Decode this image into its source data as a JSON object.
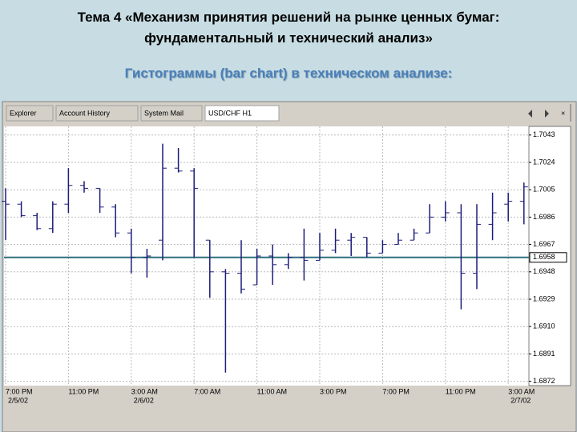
{
  "header": {
    "title_line1": "Тема 4 «Механизм принятия решений на рынке ценных бумаг:",
    "title_line2": "фундаментальный и технический анализ»",
    "subtitle": "Гистограммы (bar chart) в техническом анализе:"
  },
  "tabs": [
    "Explorer",
    "Account History",
    "System Mail",
    "USD/CHF H1"
  ],
  "chart_data": {
    "type": "ohlc",
    "color": "#1c1c7a",
    "grid": true,
    "categories": [
      "7:00 PM",
      null,
      null,
      null,
      "11:00 PM",
      null,
      null,
      null,
      "3:00 AM",
      null,
      null,
      null,
      "7:00 AM",
      null,
      null,
      null,
      "11:00 AM",
      null,
      null,
      null,
      "3:00 PM",
      null,
      null,
      null,
      "7:00 PM",
      null,
      null,
      null,
      "11:00 PM",
      null,
      null,
      null,
      "3:00 AM",
      null
    ],
    "dates": [
      "2/5/02",
      null,
      null,
      null,
      null,
      null,
      null,
      null,
      "2/6/02",
      null,
      null,
      null,
      null,
      null,
      null,
      null,
      null,
      null,
      null,
      null,
      null,
      null,
      null,
      null,
      null,
      null,
      null,
      null,
      null,
      null,
      null,
      null,
      "2/7/02",
      null
    ],
    "high": [
      1.7006,
      1.6997,
      1.6989,
      1.6997,
      1.702,
      1.7011,
      1.7006,
      1.6995,
      1.6978,
      1.6964,
      1.7037,
      1.7034,
      1.702,
      1.697,
      1.695,
      1.697,
      1.6964,
      1.6967,
      1.6961,
      1.6978,
      1.6975,
      1.6978,
      1.6975,
      1.6972,
      1.697,
      1.6975,
      1.6978,
      1.6995,
      1.6997,
      1.6995,
      1.6995,
      1.7003,
      1.7003,
      1.701
    ],
    "low": [
      1.697,
      1.6986,
      1.6977,
      1.6975,
      1.6989,
      1.7003,
      1.6989,
      1.6972,
      1.6947,
      1.6944,
      1.6956,
      1.7017,
      1.6958,
      1.693,
      1.6878,
      1.6933,
      1.6939,
      1.6939,
      1.695,
      1.6942,
      1.6956,
      1.6961,
      1.6959,
      1.6958,
      1.6961,
      1.6967,
      1.697,
      1.6975,
      1.6983,
      1.6922,
      1.6936,
      1.697,
      1.6983,
      1.6981
    ],
    "open": [
      1.6997,
      1.6995,
      1.6987,
      1.6978,
      1.6995,
      1.7008,
      1.7006,
      1.6993,
      1.6975,
      1.6958,
      1.697,
      1.702,
      1.7018,
      1.697,
      1.6948,
      1.6947,
      1.6939,
      1.6959,
      1.6953,
      1.6958,
      1.6956,
      1.6963,
      1.697,
      1.6972,
      1.6961,
      1.6967,
      1.697,
      1.6975,
      1.6986,
      1.6989,
      1.6947,
      1.6981,
      1.6995,
      1.6997
    ],
    "close": [
      1.6995,
      1.6987,
      1.6978,
      1.6995,
      1.7008,
      1.7006,
      1.6993,
      1.6975,
      1.6958,
      1.6959,
      1.702,
      1.7018,
      1.7006,
      1.6948,
      1.6947,
      1.6936,
      1.6959,
      1.6953,
      1.6958,
      1.6956,
      1.6963,
      1.697,
      1.6972,
      1.6961,
      1.6967,
      1.697,
      1.6975,
      1.6986,
      1.6989,
      1.6947,
      1.6981,
      1.6989,
      1.6997,
      1.7007
    ],
    "ylim": [
      1.6869,
      1.7049
    ],
    "yticks": [
      1.7043,
      1.7024,
      1.7005,
      1.6986,
      1.6967,
      1.6948,
      1.6929,
      {
        "value": 1.691,
        "label": "1.6910"
      },
      1.6891,
      1.6872
    ],
    "current_price": 1.6958,
    "current_color": "#2f6e7c"
  }
}
